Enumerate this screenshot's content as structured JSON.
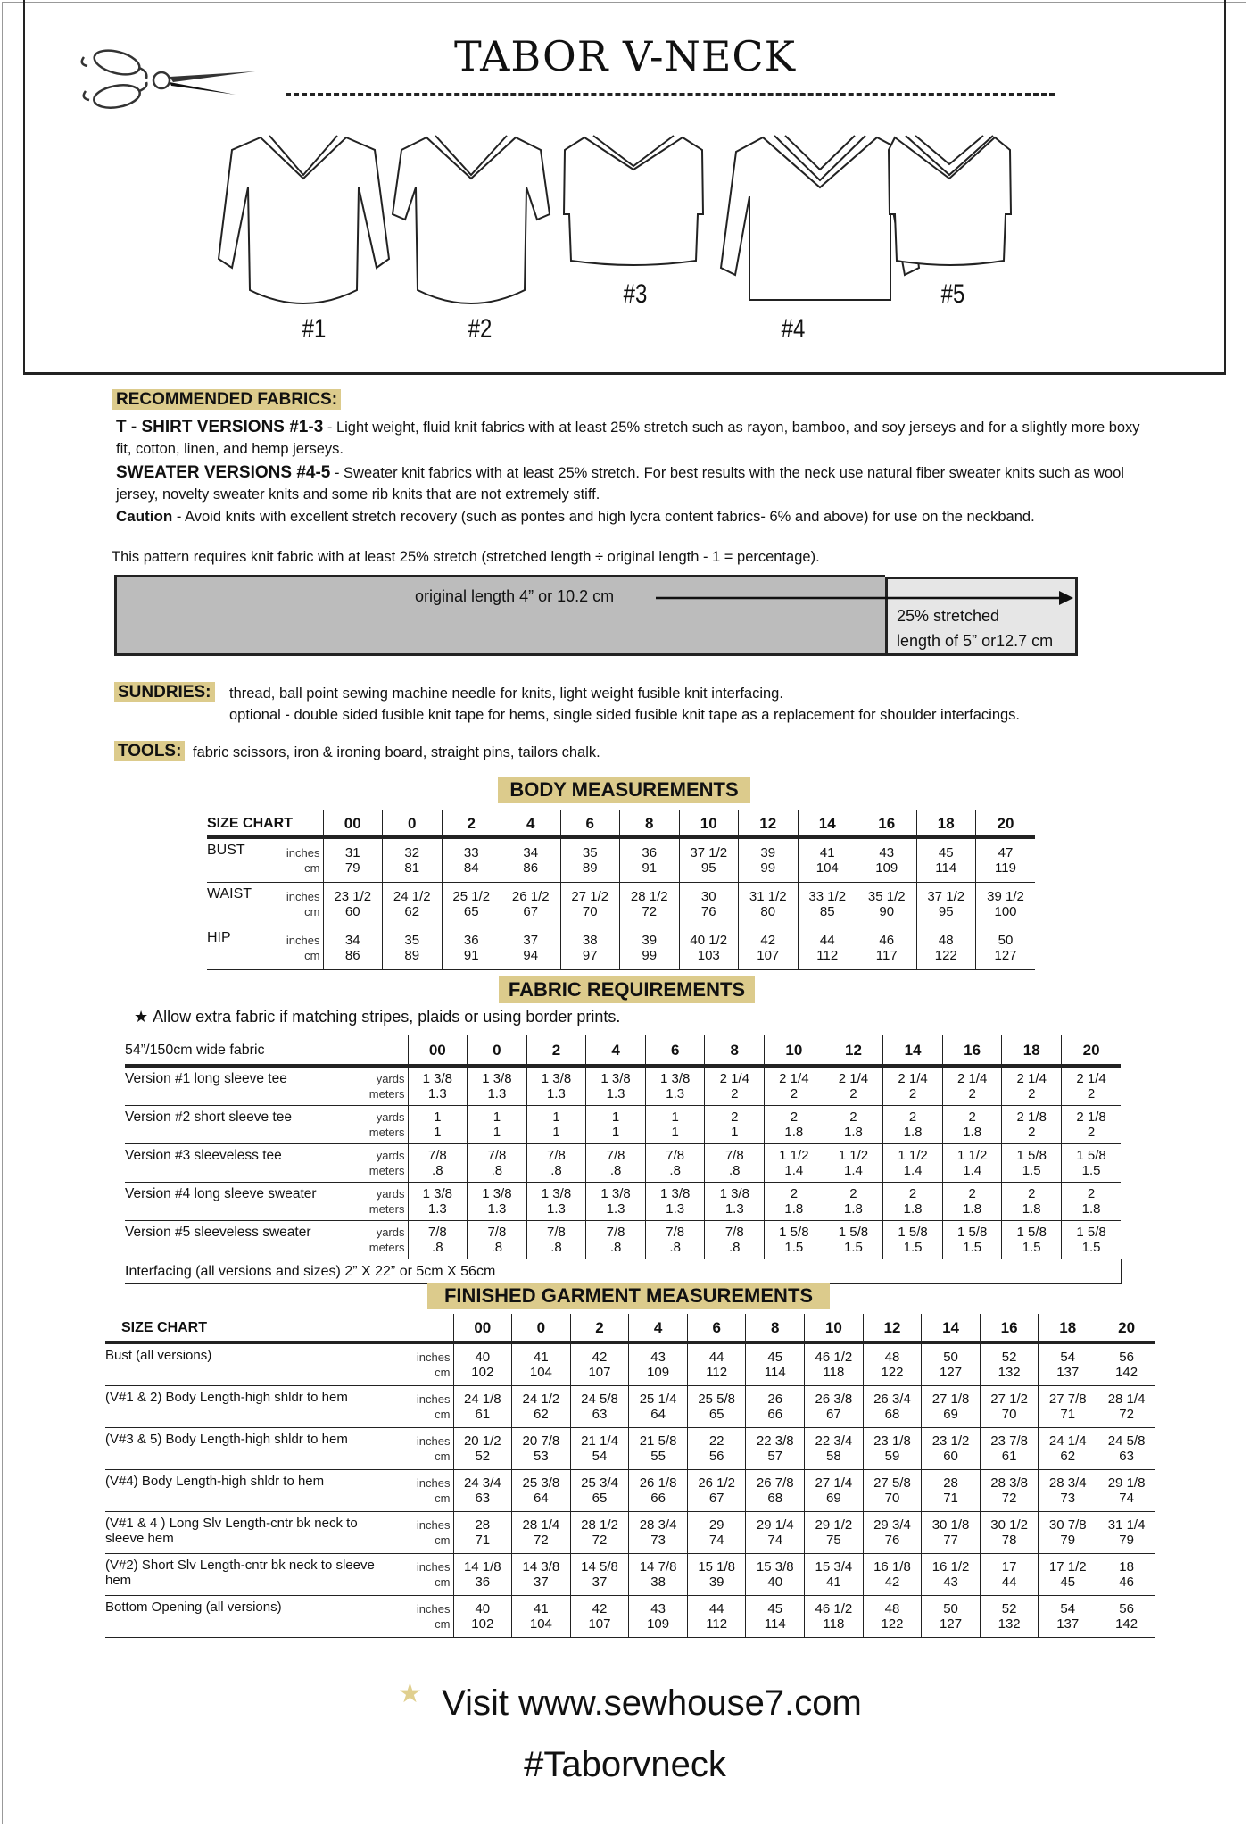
{
  "title": "TABOR V-NECK",
  "versions": [
    "#1",
    "#2",
    "#3",
    "#4",
    "#5"
  ],
  "fabrics": {
    "heading": "RECOMMENDED FABRICS",
    "heading_colon": ":",
    "tshirt_label": "T - SHIRT VERSIONS #1-3",
    "tshirt_text": " - Light weight, fluid knit fabrics with at least 25% stretch such as rayon, bamboo, and soy jerseys and for a slightly more boxy fit, cotton, linen, and hemp jerseys.",
    "sweater_label": "SWEATER VERSIONS #4-5",
    "sweater_text": " - Sweater knit fabrics with at least 25% stretch. For best results with the neck use natural fiber sweater knits such as wool jersey, novelty sweater knits and some rib knits that are not extremely stiff.",
    "caution_label": "Caution",
    "caution_text": " - Avoid knits with excellent stretch recovery (such as pontes and high lycra content fabrics- 6% and above) for use on the neckband."
  },
  "stretch": {
    "note": "This pattern requires knit fabric with at least 25% stretch (stretched length ÷ original length - 1 = percentage).",
    "original_label": "original length 4” or 10.2 cm",
    "stretched_line1": "25% stretched",
    "stretched_line2": "length of 5” or12.7 cm",
    "stretch_percent": 25
  },
  "sundries": {
    "label": "SUNDRIES:",
    "line1": "thread, ball point sewing machine needle for knits, light weight fusible knit interfacing.",
    "line2": "optional - double sided fusible knit tape for hems, single sided fusible knit tape as a replacement for shoulder interfacings."
  },
  "tools": {
    "label": "TOOLS:",
    "text": "fabric scissors, iron & ironing board, straight pins, tailors chalk."
  },
  "sizes": [
    "00",
    "0",
    "2",
    "4",
    "6",
    "8",
    "10",
    "12",
    "14",
    "16",
    "18",
    "20"
  ],
  "body_table": {
    "heading": "BODY MEASUREMENTS",
    "corner": "SIZE CHART",
    "rows": [
      {
        "label": "BUST",
        "units": [
          "inches",
          "cm"
        ],
        "values": [
          [
            "31",
            "32",
            "33",
            "34",
            "35",
            "36",
            "37 1/2",
            "39",
            "41",
            "43",
            "45",
            "47"
          ],
          [
            "79",
            "81",
            "84",
            "86",
            "89",
            "91",
            "95",
            "99",
            "104",
            "109",
            "114",
            "119"
          ]
        ]
      },
      {
        "label": "WAIST",
        "units": [
          "inches",
          "cm"
        ],
        "values": [
          [
            "23 1/2",
            "24 1/2",
            "25 1/2",
            "26 1/2",
            "27 1/2",
            "28 1/2",
            "30",
            "31 1/2",
            "33 1/2",
            "35 1/2",
            "37 1/2",
            "39 1/2"
          ],
          [
            "60",
            "62",
            "65",
            "67",
            "70",
            "72",
            "76",
            "80",
            "85",
            "90",
            "95",
            "100"
          ]
        ]
      },
      {
        "label": "HIP",
        "units": [
          "inches",
          "cm"
        ],
        "values": [
          [
            "34",
            "35",
            "36",
            "37",
            "38",
            "39",
            "40 1/2",
            "42",
            "44",
            "46",
            "48",
            "50"
          ],
          [
            "86",
            "89",
            "91",
            "94",
            "97",
            "99",
            "103",
            "107",
            "112",
            "117",
            "122",
            "127"
          ]
        ]
      }
    ]
  },
  "fabric_table": {
    "heading": "FABRIC REQUIREMENTS",
    "note": "Allow extra fabric if matching stripes, plaids or using border prints.",
    "corner": "54”/150cm wide fabric",
    "rows": [
      {
        "label": "Version #1 long sleeve tee",
        "units": [
          "yards",
          "meters"
        ],
        "values": [
          [
            "1 3/8",
            "1 3/8",
            "1 3/8",
            "1 3/8",
            "1 3/8",
            "2 1/4",
            "2 1/4",
            "2 1/4",
            "2 1/4",
            "2 1/4",
            "2 1/4",
            "2 1/4"
          ],
          [
            "1.3",
            "1.3",
            "1.3",
            "1.3",
            "1.3",
            "2",
            "2",
            "2",
            "2",
            "2",
            "2",
            "2"
          ]
        ]
      },
      {
        "label": "Version #2 short sleeve tee",
        "units": [
          "yards",
          "meters"
        ],
        "values": [
          [
            "1",
            "1",
            "1",
            "1",
            "1",
            "2",
            "2",
            "2",
            "2",
            "2",
            "2 1/8",
            "2 1/8"
          ],
          [
            "1",
            "1",
            "1",
            "1",
            "1",
            "1",
            "1.8",
            "1.8",
            "1.8",
            "1.8",
            "2",
            "2"
          ]
        ]
      },
      {
        "label": "Version #3 sleeveless tee",
        "units": [
          "yards",
          "meters"
        ],
        "values": [
          [
            "7/8",
            "7/8",
            "7/8",
            "7/8",
            "7/8",
            "7/8",
            "1 1/2",
            "1 1/2",
            "1 1/2",
            "1 1/2",
            "1 5/8",
            "1 5/8"
          ],
          [
            ".8",
            ".8",
            ".8",
            ".8",
            ".8",
            ".8",
            "1.4",
            "1.4",
            "1.4",
            "1.4",
            "1.5",
            "1.5"
          ]
        ]
      },
      {
        "label": "Version #4 long sleeve sweater",
        "units": [
          "yards",
          "meters"
        ],
        "values": [
          [
            "1 3/8",
            "1 3/8",
            "1 3/8",
            "1 3/8",
            "1 3/8",
            "1 3/8",
            "2",
            "2",
            "2",
            "2",
            "2",
            "2"
          ],
          [
            "1.3",
            "1.3",
            "1.3",
            "1.3",
            "1.3",
            "1.3",
            "1.8",
            "1.8",
            "1.8",
            "1.8",
            "1.8",
            "1.8"
          ]
        ]
      },
      {
        "label": "Version #5 sleeveless sweater",
        "units": [
          "yards",
          "meters"
        ],
        "values": [
          [
            "7/8",
            "7/8",
            "7/8",
            "7/8",
            "7/8",
            "7/8",
            "1 5/8",
            "1 5/8",
            "1 5/8",
            "1 5/8",
            "1 5/8",
            "1 5/8"
          ],
          [
            ".8",
            ".8",
            ".8",
            ".8",
            ".8",
            ".8",
            "1.5",
            "1.5",
            "1.5",
            "1.5",
            "1.5",
            "1.5"
          ]
        ]
      }
    ],
    "interfacing": "Interfacing (all versions and sizes)  2” X 22” or 5cm X 56cm"
  },
  "finished_table": {
    "heading": "FINISHED GARMENT MEASUREMENTS",
    "corner": "SIZE CHART",
    "rows": [
      {
        "label": "Bust  (all versions)",
        "units": [
          "inches",
          "cm"
        ],
        "values": [
          [
            "40",
            "41",
            "42",
            "43",
            "44",
            "45",
            "46 1/2",
            "48",
            "50",
            "52",
            "54",
            "56"
          ],
          [
            "102",
            "104",
            "107",
            "109",
            "112",
            "114",
            "118",
            "122",
            "127",
            "132",
            "137",
            "142"
          ]
        ]
      },
      {
        "label": "(V#1 & 2) Body Length-high shldr to hem",
        "units": [
          "inches",
          "cm"
        ],
        "values": [
          [
            "24 1/8",
            "24 1/2",
            "24 5/8",
            "25 1/4",
            "25 5/8",
            "26",
            "26 3/8",
            "26 3/4",
            "27 1/8",
            "27 1/2",
            "27 7/8",
            "28 1/4"
          ],
          [
            "61",
            "62",
            "63",
            "64",
            "65",
            "66",
            "67",
            "68",
            "69",
            "70",
            "71",
            "72"
          ]
        ]
      },
      {
        "label": "(V#3 & 5) Body Length-high shldr to hem",
        "units": [
          "inches",
          "cm"
        ],
        "values": [
          [
            "20 1/2",
            "20 7/8",
            "21 1/4",
            "21 5/8",
            "22",
            "22 3/8",
            "22 3/4",
            "23 1/8",
            "23 1/2",
            "23 7/8",
            "24 1/4",
            "24 5/8"
          ],
          [
            "52",
            "53",
            "54",
            "55",
            "56",
            "57",
            "58",
            "59",
            "60",
            "61",
            "62",
            "63"
          ]
        ]
      },
      {
        "label": "(V#4) Body Length-high shldr to hem",
        "units": [
          "inches",
          "cm"
        ],
        "values": [
          [
            "24 3/4",
            "25 3/8",
            "25 3/4",
            "26 1/8",
            "26 1/2",
            "26 7/8",
            "27 1/4",
            "27 5/8",
            "28",
            "28 3/8",
            "28 3/4",
            "29 1/8"
          ],
          [
            "63",
            "64",
            "65",
            "66",
            "67",
            "68",
            "69",
            "70",
            "71",
            "72",
            "73",
            "74"
          ]
        ]
      },
      {
        "label": "(V#1 & 4 ) Long Slv Length-cntr bk neck to sleeve hem",
        "units": [
          "inches",
          "cm"
        ],
        "values": [
          [
            "28",
            "28 1/4",
            "28 1/2",
            "28 3/4",
            "29",
            "29 1/4",
            "29 1/2",
            "29 3/4",
            "30 1/8",
            "30 1/2",
            "30 7/8",
            "31 1/4"
          ],
          [
            "71",
            "72",
            "72",
            "73",
            "74",
            "74",
            "75",
            "76",
            "77",
            "78",
            "79",
            "79"
          ]
        ]
      },
      {
        "label": "(V#2) Short Slv Length-cntr bk neck to sleeve hem",
        "units": [
          "inches",
          "cm"
        ],
        "values": [
          [
            "14 1/8",
            "14 3/8",
            "14 5/8",
            "14 7/8",
            "15 1/8",
            "15 3/8",
            "15 3/4",
            "16 1/8",
            "16 1/2",
            "17",
            "17 1/2",
            "18"
          ],
          [
            "36",
            "37",
            "37",
            "38",
            "39",
            "40",
            "41",
            "42",
            "43",
            "44",
            "45",
            "46"
          ]
        ]
      },
      {
        "label": "Bottom Opening (all versions)",
        "units": [
          "inches",
          "cm"
        ],
        "values": [
          [
            "40",
            "41",
            "42",
            "43",
            "44",
            "45",
            "46 1/2",
            "48",
            "50",
            "52",
            "54",
            "56"
          ],
          [
            "102",
            "104",
            "107",
            "109",
            "112",
            "114",
            "118",
            "122",
            "127",
            "132",
            "137",
            "142"
          ]
        ]
      }
    ]
  },
  "footer": {
    "visit": "Visit www.sewhouse7.com",
    "hashtag": "#Taborvneck"
  },
  "colors": {
    "label_highlight": "#dccb8c",
    "star": "#e0cf8e",
    "bar_original": "#bcbcbc",
    "bar_stretched": "#e6e6e6"
  },
  "icons": {
    "logo": "scissors-icon",
    "note": "star-icon",
    "footer": "star-icon"
  }
}
